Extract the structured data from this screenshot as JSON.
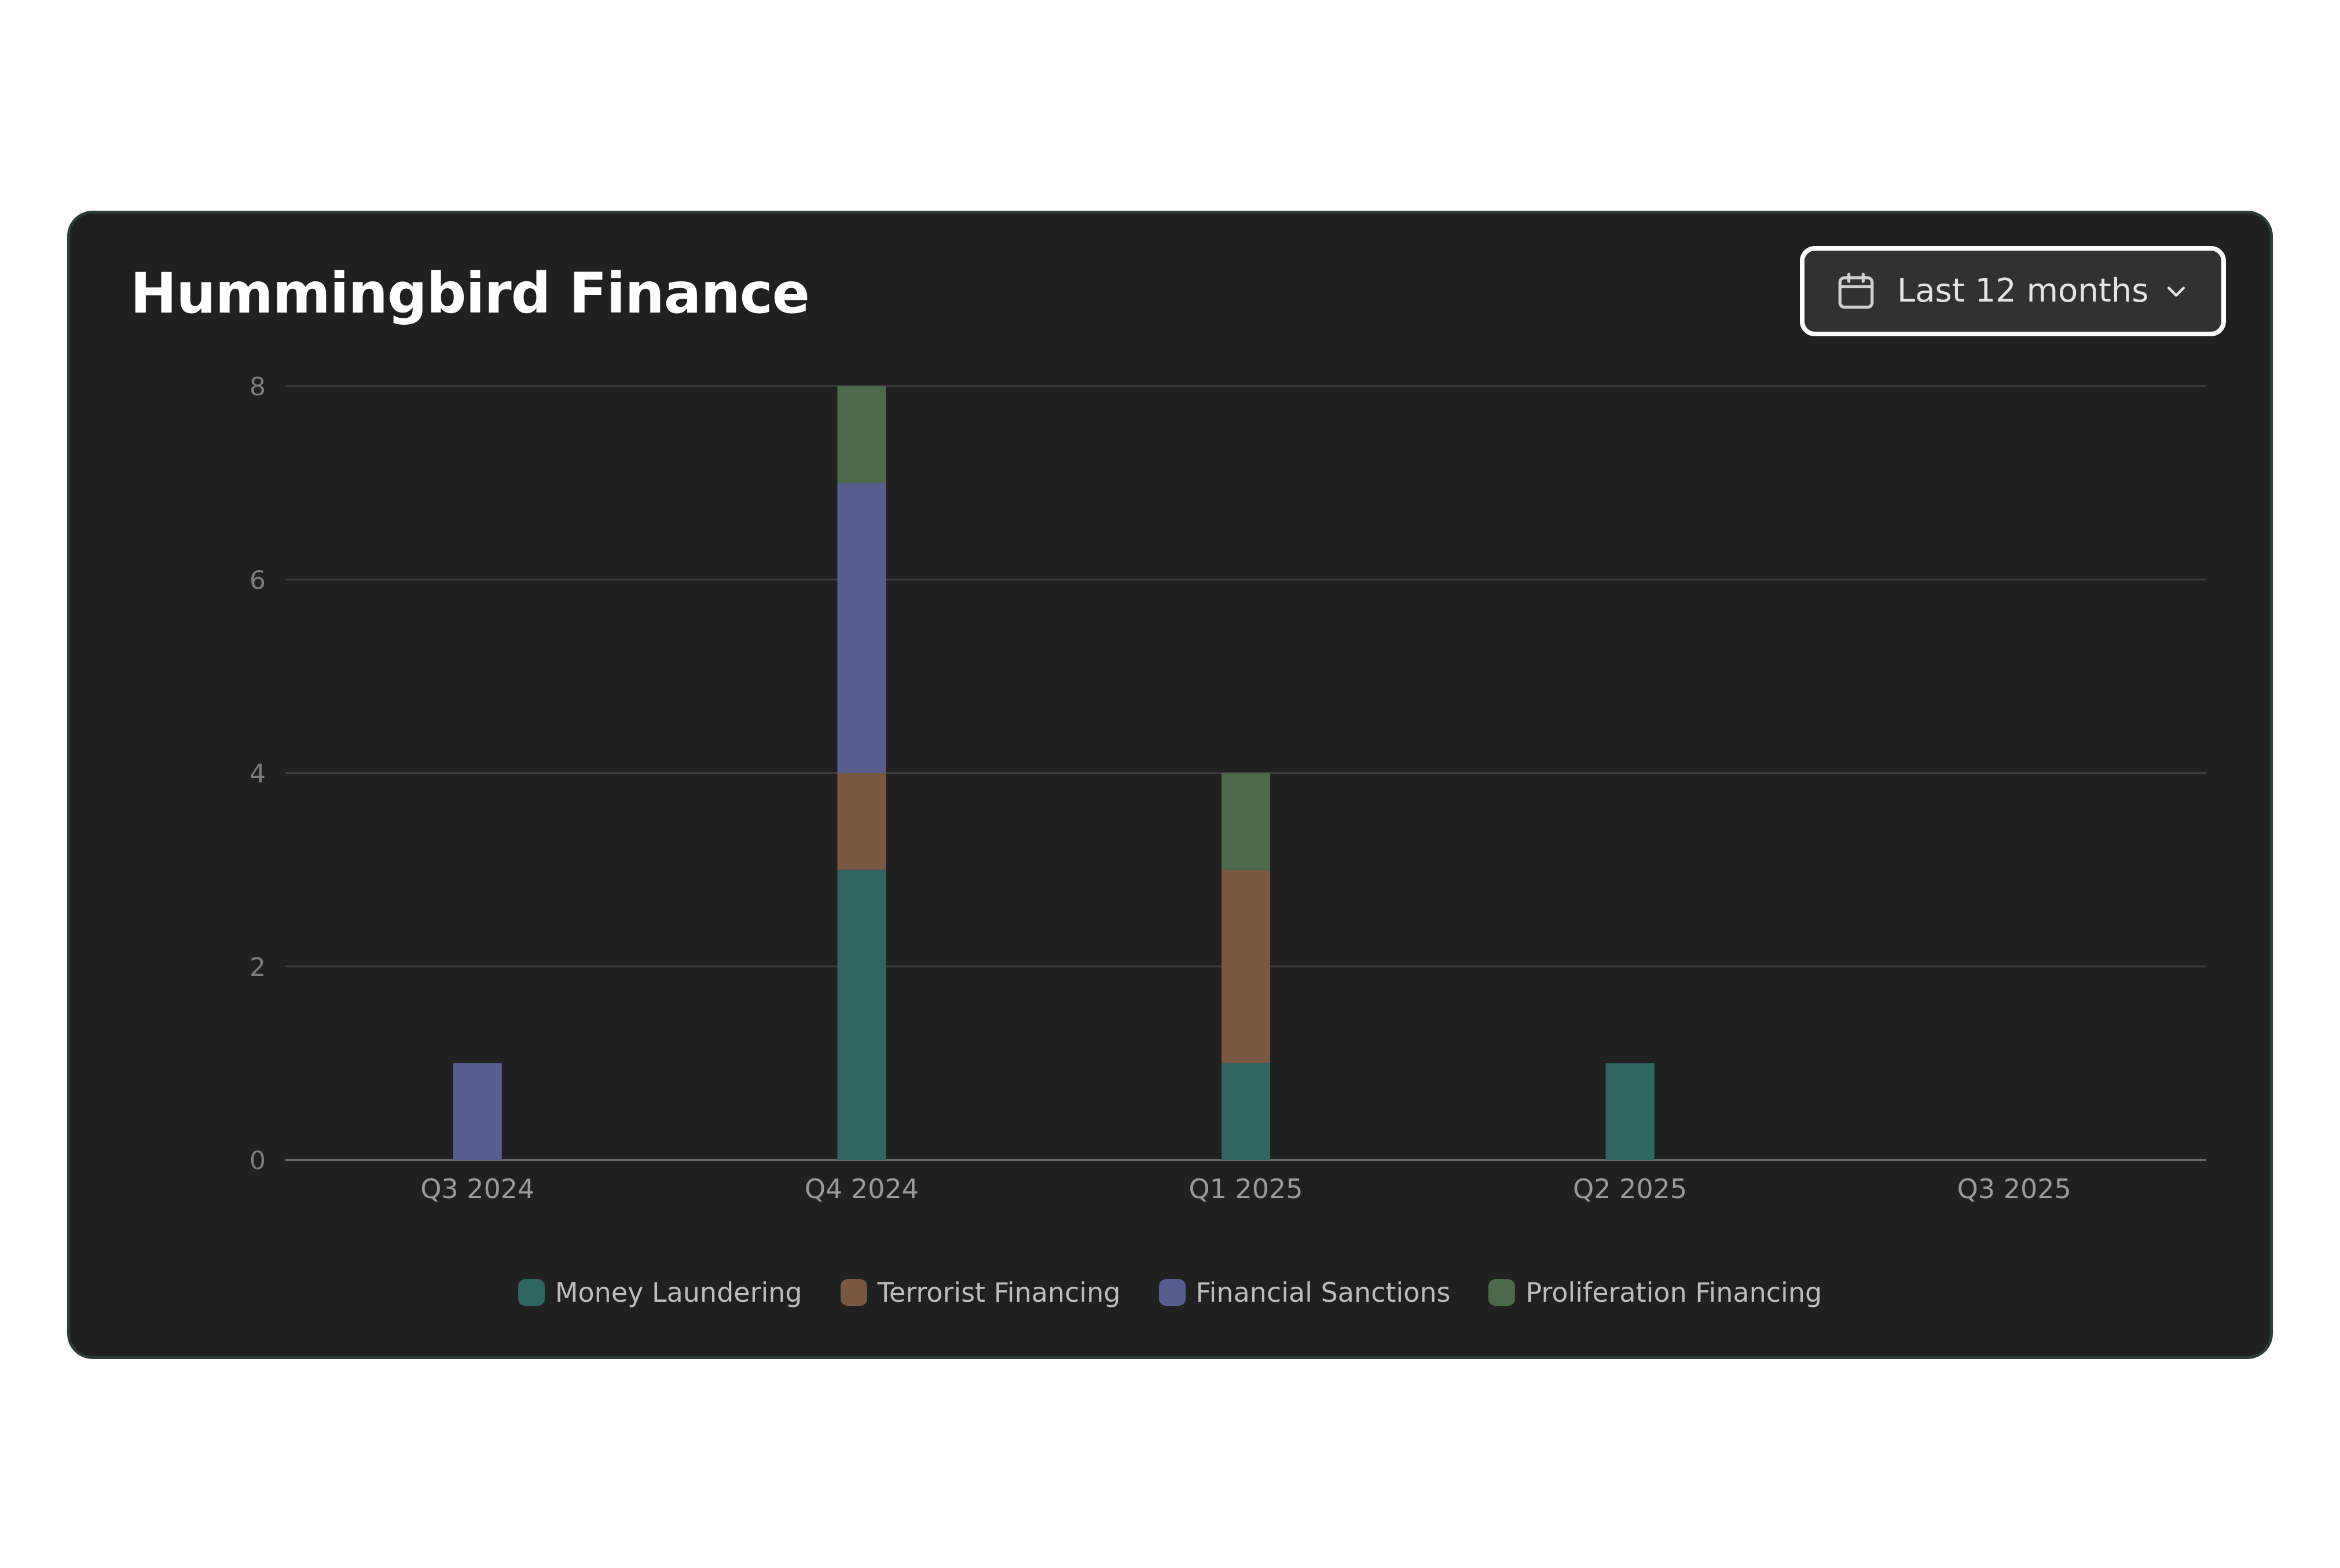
{
  "header": {
    "title": "Hummingbird Finance",
    "range": {
      "label": "Last 12 months",
      "icon": "calendar-icon",
      "dropdown_icon": "chevron-down-icon"
    }
  },
  "chart_data": {
    "type": "bar",
    "stacked": true,
    "categories": [
      "Q3 2024",
      "Q4 2024",
      "Q1 2025",
      "Q2 2025",
      "Q3 2025"
    ],
    "series": [
      {
        "name": "Money Laundering",
        "color": "#2e6462",
        "values": [
          0,
          3,
          1,
          1,
          0
        ]
      },
      {
        "name": "Terrorist Financing",
        "color": "#7a5740",
        "values": [
          0,
          1,
          2,
          0,
          0
        ]
      },
      {
        "name": "Financial Sanctions",
        "color": "#555e8e",
        "values": [
          1,
          3,
          0,
          0,
          0
        ]
      },
      {
        "name": "Proliferation Financing",
        "color": "#4a6a4a",
        "values": [
          0,
          1,
          1,
          0,
          0
        ]
      }
    ],
    "ylim": [
      0,
      8
    ],
    "yticks": [
      0,
      2,
      4,
      6,
      8
    ],
    "grid": true,
    "legend_position": "bottom",
    "title": "",
    "xlabel": "",
    "ylabel": ""
  }
}
